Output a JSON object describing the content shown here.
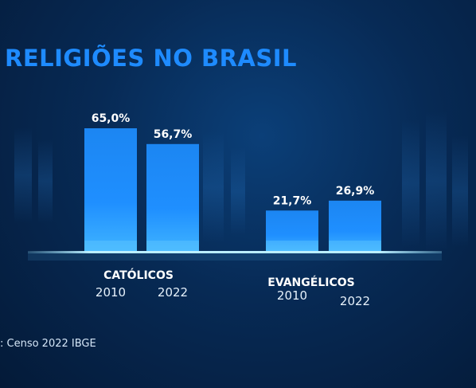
{
  "chart_data": {
    "type": "bar",
    "title": "RELIGIÕES NO BRASIL",
    "groups": [
      {
        "name": "CATÓLICOS",
        "bars": [
          {
            "year": "2010",
            "value": 65.0,
            "label": "65,0%"
          },
          {
            "year": "2022",
            "value": 56.7,
            "label": "56,7%"
          }
        ]
      },
      {
        "name": "EVANGÉLICOS",
        "bars": [
          {
            "year": "2010",
            "value": 21.7,
            "label": "21,7%"
          },
          {
            "year": "2022",
            "value": 26.9,
            "label": "26,9%"
          }
        ]
      }
    ],
    "ylim": [
      0,
      100
    ],
    "grid": false
  },
  "source": ": Censo 2022 IBGE",
  "colors": {
    "title": "#1e8bff",
    "bar": "#1a8cff",
    "baseline": "#9fe6ff",
    "text": "#ffffff"
  }
}
